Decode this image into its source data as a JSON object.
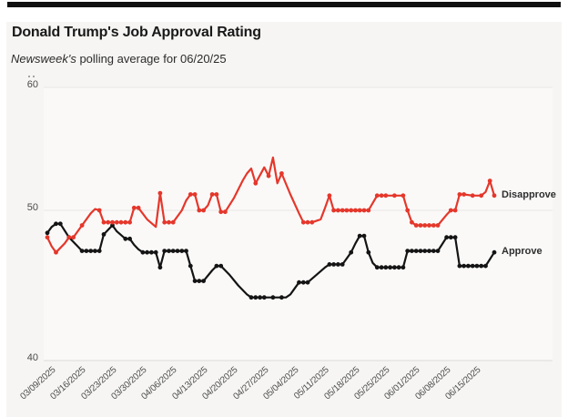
{
  "header": {
    "title": "Donald Trump's Job Approval Rating",
    "subtitle_italic": "Newsweek's",
    "subtitle_rest": " polling average for 06/20/25"
  },
  "colors": {
    "disapprove_line": "#e5372b",
    "approve_line": "#141414",
    "card_background": "#f6f5f3",
    "plot_background": "#faf9f8",
    "gridline": "#e9e8e4",
    "axis_text": "#4a4a4a",
    "tick_text": "#4f4f4f",
    "top_bar": "#101010"
  },
  "chart_data": {
    "type": "line",
    "title": "Donald Trump's Job Approval Rating",
    "subtitle": "Newsweek's polling average for 06/20/25",
    "x_start_date": "03/09/2025",
    "x_end_date": "06/20/2025",
    "x_unit": "day",
    "x_tick_labels": [
      "03/09/2025",
      "03/16/2025",
      "03/23/2025",
      "03/30/2025",
      "04/06/2025",
      "04/13/2025",
      "04/20/2025",
      "04/27/2025",
      "05/04/2025",
      "05/11/2025",
      "05/18/2025",
      "05/25/2025",
      "06/01/2025",
      "06/08/2025",
      "06/15/2025"
    ],
    "x_tick_day_offsets": [
      0,
      7,
      14,
      21,
      28,
      35,
      42,
      49,
      56,
      63,
      70,
      77,
      84,
      91,
      98
    ],
    "ylim": [
      40,
      60
    ],
    "y_ticks": [
      40,
      50,
      60
    ],
    "grid": "horizontal",
    "legend_position": "right-end-labels",
    "series": [
      {
        "name": "Approve",
        "color": "#141414",
        "points": [
          [
            0,
            48.5
          ],
          [
            1,
            48.9,
            0
          ],
          [
            2,
            49.1
          ],
          [
            3,
            49.1
          ],
          [
            5,
            48.2
          ],
          [
            7,
            47.6,
            0
          ],
          [
            8,
            47.3
          ],
          [
            9,
            47.3
          ],
          [
            10,
            47.3
          ],
          [
            11,
            47.3
          ],
          [
            12,
            47.3
          ],
          [
            13,
            48.4
          ],
          [
            15,
            49.0
          ],
          [
            16,
            48.6,
            0
          ],
          [
            18,
            48.1
          ],
          [
            19,
            48.1
          ],
          [
            20,
            47.7,
            0
          ],
          [
            21,
            47.4,
            0
          ],
          [
            22,
            47.2
          ],
          [
            23,
            47.2
          ],
          [
            24,
            47.2
          ],
          [
            25,
            47.2
          ],
          [
            26,
            46.2
          ],
          [
            27,
            47.3
          ],
          [
            28,
            47.3
          ],
          [
            29,
            47.3
          ],
          [
            30,
            47.3
          ],
          [
            31,
            47.3
          ],
          [
            32,
            47.3
          ],
          [
            33,
            46.3
          ],
          [
            34,
            45.3
          ],
          [
            35,
            45.3
          ],
          [
            36,
            45.3
          ],
          [
            38,
            46.0,
            0
          ],
          [
            39,
            46.3
          ],
          [
            40,
            46.3
          ],
          [
            42,
            45.7,
            0
          ],
          [
            44,
            45.0,
            0
          ],
          [
            46,
            44.4,
            0
          ],
          [
            47,
            44.2
          ],
          [
            48,
            44.2
          ],
          [
            49,
            44.2
          ],
          [
            50,
            44.2
          ],
          [
            52,
            44.2
          ],
          [
            54,
            44.2
          ],
          [
            55,
            44.2,
            0
          ],
          [
            56,
            44.4,
            0
          ],
          [
            57,
            44.8,
            0
          ],
          [
            58,
            45.2
          ],
          [
            59,
            45.2
          ],
          [
            60,
            45.2
          ],
          [
            62,
            45.7,
            0
          ],
          [
            64,
            46.2,
            0
          ],
          [
            65,
            46.4
          ],
          [
            66,
            46.4
          ],
          [
            67,
            46.4
          ],
          [
            68,
            46.4
          ],
          [
            70,
            47.2
          ],
          [
            71,
            47.8,
            0
          ],
          [
            72,
            48.3
          ],
          [
            73,
            48.3
          ],
          [
            74,
            47.2
          ],
          [
            75,
            46.5,
            0
          ],
          [
            76,
            46.2
          ],
          [
            77,
            46.2
          ],
          [
            78,
            46.2
          ],
          [
            79,
            46.2
          ],
          [
            80,
            46.2
          ],
          [
            81,
            46.2
          ],
          [
            82,
            46.2
          ],
          [
            83,
            47.3
          ],
          [
            84,
            47.3
          ],
          [
            85,
            47.3
          ],
          [
            86,
            47.3
          ],
          [
            87,
            47.3
          ],
          [
            88,
            47.3
          ],
          [
            89,
            47.3
          ],
          [
            90,
            47.3
          ],
          [
            92,
            48.2
          ],
          [
            93,
            48.2
          ],
          [
            94,
            48.2
          ],
          [
            95,
            46.3
          ],
          [
            96,
            46.3
          ],
          [
            97,
            46.3
          ],
          [
            98,
            46.3
          ],
          [
            99,
            46.3
          ],
          [
            100,
            46.3
          ],
          [
            101,
            46.3
          ],
          [
            103,
            47.2
          ]
        ]
      },
      {
        "name": "Disapprove",
        "color": "#e5372b",
        "points": [
          [
            0,
            48.2
          ],
          [
            1,
            47.6,
            0
          ],
          [
            2,
            47.2
          ],
          [
            4,
            47.8,
            0
          ],
          [
            5,
            48.2
          ],
          [
            6,
            48.2
          ],
          [
            8,
            49.0
          ],
          [
            10,
            49.8,
            0
          ],
          [
            11,
            50.1,
            0
          ],
          [
            12,
            50.0
          ],
          [
            13,
            49.2
          ],
          [
            14,
            49.2
          ],
          [
            15,
            49.2
          ],
          [
            16,
            49.2
          ],
          [
            17,
            49.2
          ],
          [
            18,
            49.2
          ],
          [
            19,
            49.2
          ],
          [
            20,
            50.2
          ],
          [
            21,
            50.2
          ],
          [
            23,
            49.4,
            0
          ],
          [
            25,
            48.9,
            0
          ],
          [
            26,
            51.4
          ],
          [
            27,
            49.2
          ],
          [
            28,
            49.2
          ],
          [
            29,
            49.2
          ],
          [
            31,
            50.0,
            0
          ],
          [
            32,
            50.8,
            0
          ],
          [
            33,
            51.3
          ],
          [
            34,
            51.3
          ],
          [
            35,
            50.0
          ],
          [
            36,
            50.0
          ],
          [
            37,
            50.4,
            0
          ],
          [
            38,
            51.3
          ],
          [
            39,
            51.3
          ],
          [
            40,
            49.9
          ],
          [
            41,
            49.9
          ],
          [
            43,
            51.0,
            0
          ],
          [
            45,
            52.4,
            0
          ],
          [
            46,
            53.0,
            0
          ],
          [
            47,
            53.4,
            0
          ],
          [
            48,
            52.2
          ],
          [
            50,
            53.5,
            0
          ],
          [
            51,
            52.8
          ],
          [
            52,
            54.3,
            0
          ],
          [
            53,
            52.2,
            0
          ],
          [
            54,
            53.0
          ],
          [
            56,
            51.3,
            0
          ],
          [
            58,
            49.8,
            0
          ],
          [
            59,
            49.2
          ],
          [
            60,
            49.2
          ],
          [
            61,
            49.2
          ],
          [
            63,
            49.4,
            0
          ],
          [
            64,
            50.2,
            0
          ],
          [
            65,
            51.2
          ],
          [
            66,
            50.0
          ],
          [
            67,
            50.0
          ],
          [
            68,
            50.0
          ],
          [
            69,
            50.0
          ],
          [
            70,
            50.0
          ],
          [
            71,
            50.0
          ],
          [
            72,
            50.0
          ],
          [
            73,
            50.0
          ],
          [
            74,
            50.0
          ],
          [
            76,
            51.2
          ],
          [
            77,
            51.2
          ],
          [
            78,
            51.2
          ],
          [
            80,
            51.2
          ],
          [
            82,
            51.2
          ],
          [
            83,
            50.0
          ],
          [
            84,
            49.2
          ],
          [
            85,
            49.0
          ],
          [
            86,
            49.0
          ],
          [
            87,
            49.0
          ],
          [
            88,
            49.0
          ],
          [
            89,
            49.0
          ],
          [
            90,
            49.0
          ],
          [
            92,
            49.7,
            0
          ],
          [
            93,
            50.0
          ],
          [
            94,
            50.0
          ],
          [
            95,
            51.3
          ],
          [
            96,
            51.3
          ],
          [
            98,
            51.2
          ],
          [
            100,
            51.2
          ],
          [
            101,
            51.5,
            0
          ],
          [
            102,
            52.4
          ],
          [
            103,
            51.2
          ]
        ]
      }
    ]
  }
}
